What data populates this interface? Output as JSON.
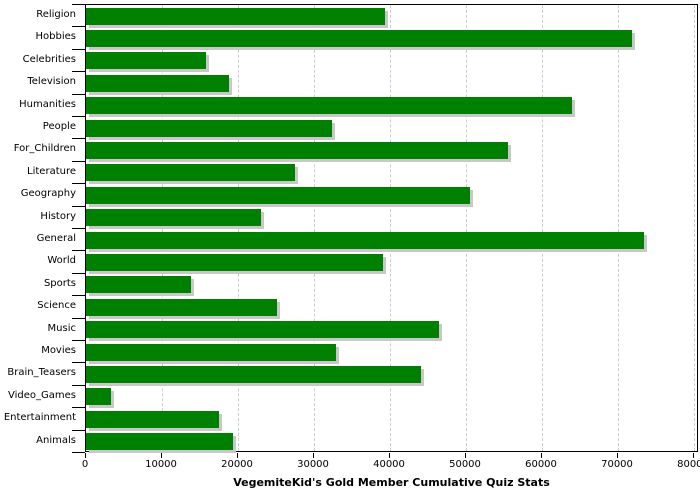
{
  "chart_data": {
    "type": "bar",
    "orientation": "horizontal",
    "title": "VegemiteKid's Gold Member Cumulative Quiz Stats",
    "categories": [
      "Religion",
      "Hobbies",
      "Celebrities",
      "Television",
      "Humanities",
      "People",
      "For_Children",
      "Literature",
      "Geography",
      "History",
      "General",
      "World",
      "Sports",
      "Science",
      "Music",
      "Movies",
      "Brain_Teasers",
      "Video_Games",
      "Entertainment",
      "Animals"
    ],
    "values": [
      39300,
      71800,
      15800,
      18800,
      63900,
      32400,
      55500,
      27500,
      50500,
      23000,
      73400,
      39100,
      13800,
      25100,
      46400,
      32900,
      44100,
      3300,
      17500,
      19300
    ],
    "xlim": [
      0,
      80000
    ],
    "x_ticks": [
      0,
      10000,
      20000,
      30000,
      40000,
      50000,
      60000,
      70000,
      80000
    ],
    "x_tick_labels": [
      "0",
      "10000",
      "20000",
      "30000",
      "40000",
      "50000",
      "60000",
      "70000",
      "80000"
    ],
    "grid": "vertical-dashed",
    "legend": "none",
    "bar_color": "#008000",
    "shadow_color": "#c8c8c8",
    "grid_color": "#cccccc",
    "axis_color": "#000000",
    "background_color": "#ffffff"
  }
}
